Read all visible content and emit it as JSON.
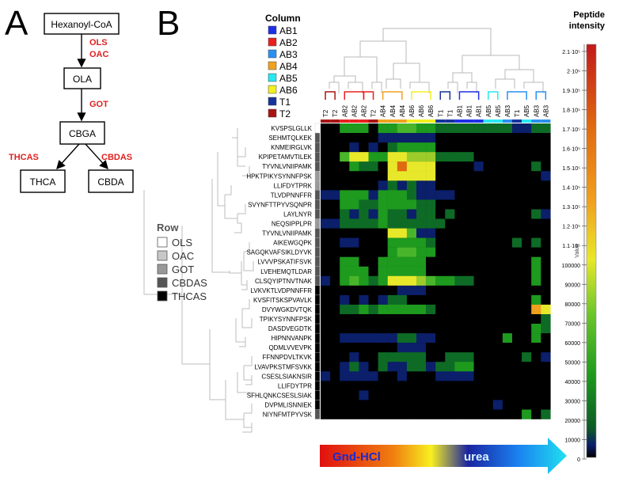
{
  "panel_a": {
    "letter": "A",
    "nodes": {
      "hexanoyl": "Hexanoyl-CoA",
      "ola": "OLA",
      "cbga": "CBGA",
      "thca": "THCA",
      "cbda": "CBDA"
    },
    "enzymes": {
      "ols": "OLS",
      "oac": "OAC",
      "got": "GOT",
      "thcas": "THCAS",
      "cbdas": "CBDAS"
    }
  },
  "panel_b": {
    "letter": "B",
    "column_legend_title": "Column",
    "column_legend": [
      {
        "label": "AB1",
        "color": "#1f2fe6"
      },
      {
        "label": "AB2",
        "color": "#e8201e"
      },
      {
        "label": "AB3",
        "color": "#2a8ff0"
      },
      {
        "label": "AB4",
        "color": "#f0a21e"
      },
      {
        "label": "AB5",
        "color": "#27e8f0"
      },
      {
        "label": "AB6",
        "color": "#f2f01e"
      },
      {
        "label": "T1",
        "color": "#15349a"
      },
      {
        "label": "T2",
        "color": "#a81414"
      }
    ],
    "columns": [
      "T2",
      "T2",
      "AB2",
      "AB2",
      "AB2",
      "T2",
      "AB4",
      "AB4",
      "AB4",
      "AB6",
      "AB6",
      "AB6",
      "T1",
      "T1",
      "AB1",
      "AB1",
      "AB1",
      "AB5",
      "AB5",
      "AB3",
      "T1",
      "AB5",
      "AB3",
      "AB3"
    ],
    "column_colors": [
      "#a81414",
      "#a81414",
      "#e8201e",
      "#e8201e",
      "#e8201e",
      "#a81414",
      "#f0a21e",
      "#f0a21e",
      "#f0a21e",
      "#f2f01e",
      "#f2f01e",
      "#f2f01e",
      "#15349a",
      "#15349a",
      "#1f2fe6",
      "#1f2fe6",
      "#1f2fe6",
      "#27e8f0",
      "#27e8f0",
      "#2a8ff0",
      "#15349a",
      "#27e8f0",
      "#2a8ff0",
      "#2a8ff0"
    ],
    "rows": [
      "KVSPSLGLLK",
      "SEHMTQLKEK",
      "KNMEIRGLVK",
      "KPIPETAMVTILEK",
      "TYVNLVNIIPAMK",
      "HPKTPIKYSYNNFPSK",
      "LLIFDYTPRK",
      "TLVDPNNFFR",
      "SVYNFTTPYVSQNPR",
      "LAYLNYR",
      "NEQSIPPLPR",
      "TYVNLVNIIPAMK",
      "AIKEWGQPK",
      "SAGQKVAFSIKLDYVK",
      "LVVVPSKATIFSVK",
      "LVEHEMQTLDAR",
      "CLSQYIPTNVTNAK",
      "LVKVKTLVDPNNFFR",
      "KVSFITSKSPVAVLK",
      "DVYWGKDVTQK",
      "TPIKYSYNNFPSK",
      "DASDVEGDTK",
      "HIPNNVANPK",
      "QDMLVVEVPK",
      "FFNNPDVLTKVK",
      "LVAVPKSTMFSVKK",
      "CSESLSIAKNSIR",
      "LLIFDYTPR",
      "SFHLQNKCSESLSIAK",
      "DVPMLISNNIEK",
      "NIYNFMTPYVSK"
    ],
    "row_group": [
      "OLS",
      "CBDAS",
      "CBDAS",
      "CBDAS",
      "CBDAS",
      "GOT",
      "GOT",
      "CBDAS",
      "CBDAS",
      "CBDAS",
      "GOT",
      "CBDAS",
      "CBDAS",
      "CBDAS",
      "CBDAS",
      "CBDAS",
      "CBDAS",
      "THCAS",
      "THCAS",
      "THCAS",
      "THCAS",
      "THCAS",
      "THCAS",
      "THCAS",
      "THCAS",
      "THCAS",
      "THCAS",
      "THCAS",
      "THCAS",
      "THCAS",
      "CBDAS"
    ],
    "row_legend_title": "Row",
    "row_legend": [
      {
        "label": "OLS",
        "color": "#ffffff"
      },
      {
        "label": "OAC",
        "color": "#c8c8c8"
      },
      {
        "label": "GOT",
        "color": "#999999"
      },
      {
        "label": "CBDAS",
        "color": "#555555"
      },
      {
        "label": "THCAS",
        "color": "#000000"
      }
    ],
    "matrix_description": "intensity levels 0-9 per cell",
    "matrix": [
      [
        0,
        0,
        3,
        3,
        3,
        0,
        3,
        3,
        4,
        4,
        3,
        3,
        2,
        2,
        2,
        2,
        2,
        2,
        2,
        2,
        1,
        1,
        2,
        2
      ],
      [
        0,
        0,
        0,
        0,
        0,
        0,
        1,
        1,
        1,
        1,
        1,
        1,
        0,
        0,
        0,
        0,
        0,
        0,
        0,
        0,
        0,
        0,
        0,
        0
      ],
      [
        0,
        0,
        0,
        1,
        0,
        1,
        0,
        2,
        3,
        3,
        3,
        3,
        0,
        0,
        0,
        0,
        0,
        0,
        0,
        0,
        0,
        0,
        0,
        0
      ],
      [
        0,
        0,
        4,
        6,
        6,
        3,
        3,
        6,
        6,
        5,
        5,
        5,
        2,
        2,
        2,
        2,
        0,
        0,
        0,
        0,
        0,
        0,
        0,
        0
      ],
      [
        0,
        0,
        0,
        3,
        2,
        2,
        0,
        6,
        8,
        6,
        6,
        6,
        0,
        0,
        0,
        0,
        1,
        0,
        0,
        0,
        0,
        0,
        2,
        0
      ],
      [
        0,
        0,
        0,
        0,
        0,
        0,
        0,
        6,
        6,
        6,
        6,
        6,
        0,
        0,
        0,
        0,
        0,
        0,
        0,
        0,
        0,
        0,
        0,
        1
      ],
      [
        0,
        0,
        0,
        0,
        0,
        0,
        1,
        2,
        1,
        2,
        1,
        1,
        0,
        0,
        0,
        0,
        0,
        0,
        0,
        0,
        0,
        0,
        0,
        0
      ],
      [
        1,
        1,
        3,
        3,
        3,
        1,
        3,
        3,
        3,
        2,
        1,
        1,
        1,
        1,
        0,
        0,
        0,
        0,
        0,
        0,
        0,
        0,
        0,
        0
      ],
      [
        0,
        0,
        3,
        3,
        2,
        2,
        3,
        3,
        3,
        3,
        2,
        2,
        0,
        0,
        0,
        0,
        0,
        0,
        0,
        0,
        0,
        0,
        0,
        0
      ],
      [
        0,
        0,
        2,
        1,
        2,
        1,
        3,
        2,
        2,
        1,
        2,
        2,
        0,
        2,
        0,
        0,
        0,
        0,
        0,
        0,
        0,
        0,
        2,
        1
      ],
      [
        1,
        1,
        2,
        2,
        2,
        2,
        3,
        2,
        2,
        2,
        2,
        2,
        2,
        0,
        0,
        0,
        0,
        0,
        0,
        0,
        0,
        0,
        0,
        0
      ],
      [
        0,
        0,
        0,
        0,
        0,
        0,
        0,
        6,
        6,
        4,
        1,
        1,
        0,
        0,
        0,
        0,
        0,
        0,
        0,
        0,
        0,
        0,
        0,
        0
      ],
      [
        0,
        0,
        1,
        1,
        0,
        0,
        0,
        3,
        3,
        3,
        3,
        2,
        0,
        0,
        0,
        0,
        0,
        0,
        0,
        0,
        2,
        0,
        2,
        0
      ],
      [
        0,
        0,
        0,
        0,
        0,
        0,
        0,
        3,
        4,
        4,
        3,
        3,
        0,
        0,
        0,
        0,
        0,
        0,
        0,
        0,
        0,
        0,
        0,
        0
      ],
      [
        0,
        0,
        3,
        3,
        0,
        0,
        3,
        3,
        3,
        3,
        3,
        0,
        0,
        0,
        0,
        0,
        0,
        0,
        0,
        0,
        0,
        0,
        3,
        0
      ],
      [
        0,
        0,
        3,
        3,
        3,
        0,
        3,
        3,
        3,
        3,
        3,
        0,
        0,
        0,
        0,
        0,
        0,
        0,
        0,
        0,
        0,
        0,
        3,
        0
      ],
      [
        1,
        0,
        3,
        4,
        3,
        2,
        3,
        6,
        6,
        6,
        5,
        4,
        3,
        3,
        2,
        2,
        0,
        0,
        0,
        0,
        0,
        0,
        3,
        0
      ],
      [
        0,
        0,
        0,
        0,
        0,
        0,
        0,
        0,
        1,
        1,
        1,
        0,
        0,
        0,
        0,
        0,
        0,
        0,
        0,
        0,
        0,
        0,
        0,
        0
      ],
      [
        0,
        0,
        1,
        0,
        1,
        0,
        1,
        2,
        2,
        0,
        0,
        0,
        0,
        0,
        0,
        0,
        0,
        0,
        0,
        0,
        0,
        0,
        3,
        0
      ],
      [
        0,
        0,
        2,
        2,
        3,
        2,
        3,
        3,
        3,
        3,
        3,
        2,
        0,
        0,
        0,
        0,
        0,
        0,
        0,
        0,
        0,
        0,
        7,
        6
      ],
      [
        0,
        0,
        0,
        0,
        0,
        0,
        0,
        0,
        0,
        0,
        0,
        0,
        0,
        0,
        0,
        0,
        0,
        0,
        0,
        0,
        0,
        0,
        0,
        2
      ],
      [
        0,
        0,
        0,
        0,
        0,
        0,
        0,
        0,
        0,
        0,
        0,
        0,
        0,
        0,
        0,
        0,
        0,
        0,
        0,
        0,
        0,
        0,
        3,
        2
      ],
      [
        0,
        0,
        1,
        1,
        1,
        1,
        1,
        1,
        2,
        2,
        1,
        1,
        0,
        0,
        0,
        0,
        0,
        0,
        0,
        3,
        0,
        0,
        3,
        0
      ],
      [
        0,
        0,
        0,
        0,
        0,
        0,
        0,
        0,
        1,
        1,
        1,
        0,
        0,
        0,
        0,
        0,
        0,
        0,
        0,
        0,
        0,
        0,
        0,
        0
      ],
      [
        0,
        0,
        0,
        1,
        0,
        0,
        2,
        2,
        2,
        2,
        2,
        0,
        0,
        2,
        2,
        2,
        0,
        0,
        0,
        0,
        0,
        2,
        0,
        1
      ],
      [
        0,
        0,
        1,
        2,
        1,
        0,
        2,
        1,
        1,
        2,
        2,
        1,
        2,
        2,
        3,
        3,
        0,
        0,
        0,
        0,
        0,
        0,
        0,
        0
      ],
      [
        1,
        0,
        1,
        1,
        1,
        1,
        0,
        0,
        1,
        0,
        0,
        0,
        1,
        1,
        1,
        1,
        0,
        0,
        0,
        0,
        0,
        0,
        0,
        0
      ],
      [
        0,
        0,
        0,
        0,
        0,
        0,
        0,
        0,
        0,
        0,
        0,
        0,
        0,
        0,
        0,
        0,
        0,
        0,
        0,
        0,
        0,
        0,
        0,
        0
      ],
      [
        0,
        0,
        0,
        0,
        1,
        0,
        0,
        0,
        0,
        0,
        0,
        0,
        0,
        0,
        0,
        0,
        0,
        0,
        0,
        0,
        0,
        0,
        0,
        0
      ],
      [
        0,
        0,
        0,
        0,
        0,
        0,
        0,
        0,
        0,
        0,
        0,
        0,
        0,
        0,
        0,
        0,
        0,
        0,
        1,
        0,
        0,
        0,
        0,
        0
      ],
      [
        0,
        0,
        0,
        0,
        0,
        0,
        0,
        0,
        0,
        0,
        0,
        0,
        0,
        0,
        0,
        0,
        0,
        0,
        0,
        0,
        0,
        3,
        0,
        2
      ]
    ],
    "palette": [
      "#000000",
      "#0b1f6a",
      "#0e6b25",
      "#1e9a1e",
      "#49b52a",
      "#9ccc2a",
      "#e8e82a",
      "#f0a01e",
      "#e06a10",
      "#c81e10"
    ],
    "colorbar": {
      "title": "Peptide intensity",
      "axis_label": "Value",
      "ticks": [
        "2.1·10⁵",
        "2·10⁵",
        "1.9·10⁵",
        "1.8·10⁵",
        "1.7·10⁵",
        "1.6·10⁵",
        "1.5·10⁵",
        "1.4·10⁵",
        "1.3·10⁵",
        "1.2·10⁵",
        "1.1·10⁵",
        "100000",
        "90000",
        "80000",
        "70000",
        "60000",
        "50000",
        "40000",
        "30000",
        "20000",
        "10000",
        "0"
      ]
    },
    "gradient_arrow": {
      "left_label": "Gnd-HCl",
      "right_label": "urea"
    }
  }
}
